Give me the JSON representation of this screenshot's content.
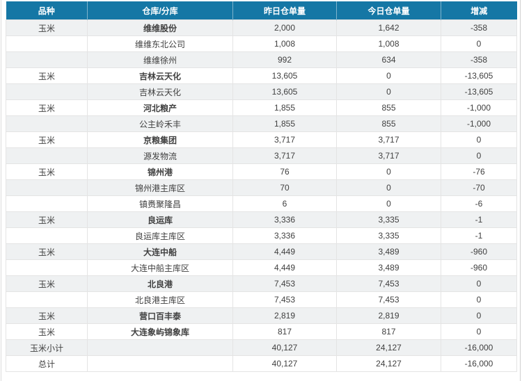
{
  "theme": {
    "header_bg": "#1577a5",
    "header_text": "#ffffff",
    "stripe_bg": "#eff1f2",
    "row_bg": "#ffffff",
    "text_color": "#404040",
    "border_color": "#e4e4e4"
  },
  "table": {
    "columns": [
      "品种",
      "仓库/分库",
      "昨日仓单量",
      "今日仓单量",
      "增减"
    ],
    "rows": [
      {
        "variety": "玉米",
        "warehouse": "维维股份",
        "group": true,
        "yesterday": "2,000",
        "today": "1,642",
        "change": "-358"
      },
      {
        "variety": "",
        "warehouse": "维维东北公司",
        "group": false,
        "yesterday": "1,008",
        "today": "1,008",
        "change": "0"
      },
      {
        "variety": "",
        "warehouse": "维维徐州",
        "group": false,
        "yesterday": "992",
        "today": "634",
        "change": "-358"
      },
      {
        "variety": "玉米",
        "warehouse": "吉林云天化",
        "group": true,
        "yesterday": "13,605",
        "today": "0",
        "change": "-13,605"
      },
      {
        "variety": "",
        "warehouse": "吉林云天化",
        "group": false,
        "yesterday": "13,605",
        "today": "0",
        "change": "-13,605"
      },
      {
        "variety": "玉米",
        "warehouse": "河北粮产",
        "group": true,
        "yesterday": "1,855",
        "today": "855",
        "change": "-1,000"
      },
      {
        "variety": "",
        "warehouse": "公主岭禾丰",
        "group": false,
        "yesterday": "1,855",
        "today": "855",
        "change": "-1,000"
      },
      {
        "variety": "玉米",
        "warehouse": "京粮集团",
        "group": true,
        "yesterday": "3,717",
        "today": "3,717",
        "change": "0"
      },
      {
        "variety": "",
        "warehouse": "源发物流",
        "group": false,
        "yesterday": "3,717",
        "today": "3,717",
        "change": "0"
      },
      {
        "variety": "玉米",
        "warehouse": "锦州港",
        "group": true,
        "yesterday": "76",
        "today": "0",
        "change": "-76"
      },
      {
        "variety": "",
        "warehouse": "锦州港主库区",
        "group": false,
        "yesterday": "70",
        "today": "0",
        "change": "-70"
      },
      {
        "variety": "",
        "warehouse": "镇赉聚隆昌",
        "group": false,
        "yesterday": "6",
        "today": "0",
        "change": "-6"
      },
      {
        "variety": "玉米",
        "warehouse": "良运库",
        "group": true,
        "yesterday": "3,336",
        "today": "3,335",
        "change": "-1"
      },
      {
        "variety": "",
        "warehouse": "良运库主库区",
        "group": false,
        "yesterday": "3,336",
        "today": "3,335",
        "change": "-1"
      },
      {
        "variety": "玉米",
        "warehouse": "大连中船",
        "group": true,
        "yesterday": "4,449",
        "today": "3,489",
        "change": "-960"
      },
      {
        "variety": "",
        "warehouse": "大连中船主库区",
        "group": false,
        "yesterday": "4,449",
        "today": "3,489",
        "change": "-960"
      },
      {
        "variety": "玉米",
        "warehouse": "北良港",
        "group": true,
        "yesterday": "7,453",
        "today": "7,453",
        "change": "0"
      },
      {
        "variety": "",
        "warehouse": "北良港主库区",
        "group": false,
        "yesterday": "7,453",
        "today": "7,453",
        "change": "0"
      },
      {
        "variety": "玉米",
        "warehouse": "营口百丰泰",
        "group": true,
        "yesterday": "2,819",
        "today": "2,819",
        "change": "0"
      },
      {
        "variety": "玉米",
        "warehouse": "大连象屿锦象库",
        "group": true,
        "yesterday": "817",
        "today": "817",
        "change": "0"
      },
      {
        "variety": "玉米小计",
        "warehouse": "",
        "group": false,
        "summary": true,
        "yesterday": "40,127",
        "today": "24,127",
        "change": "-16,000"
      },
      {
        "variety": "总计",
        "warehouse": "",
        "group": false,
        "summary": true,
        "yesterday": "40,127",
        "today": "24,127",
        "change": "-16,000"
      }
    ]
  }
}
